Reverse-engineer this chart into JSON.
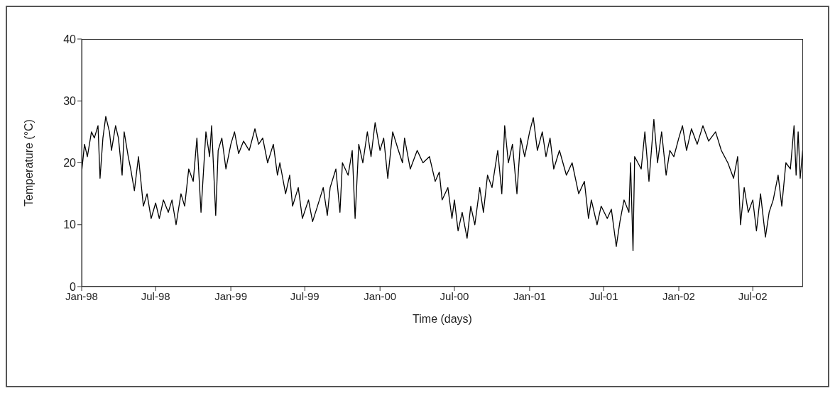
{
  "chart_data": {
    "type": "line",
    "xlabel": "Time (days)",
    "ylabel": "Temperature (°C)",
    "marker": "none",
    "xlim": [
      "1998-01-01",
      "2002-11-01"
    ],
    "xticks": [
      {
        "value": "1998-01-01",
        "label": "Jan-98"
      },
      {
        "value": "1998-07-01",
        "label": "Jul-98"
      },
      {
        "value": "1999-01-01",
        "label": "Jan-99"
      },
      {
        "value": "1999-07-01",
        "label": "Jul-99"
      },
      {
        "value": "2000-01-01",
        "label": "Jan-00"
      },
      {
        "value": "2000-07-01",
        "label": "Jul-00"
      },
      {
        "value": "2001-01-01",
        "label": "Jan-01"
      },
      {
        "value": "2001-07-01",
        "label": "Jul-01"
      },
      {
        "value": "2002-01-01",
        "label": "Jan-02"
      },
      {
        "value": "2002-07-01",
        "label": "Jul-02"
      }
    ],
    "ylim": [
      0,
      40
    ],
    "yticks": [
      0,
      10,
      20,
      30,
      40
    ],
    "x": [
      "1998-01-01",
      "1998-01-08",
      "1998-01-15",
      "1998-01-25",
      "1998-02-01",
      "1998-02-10",
      "1998-02-15",
      "1998-02-22",
      "1998-03-01",
      "1998-03-10",
      "1998-03-15",
      "1998-03-25",
      "1998-04-01",
      "1998-04-10",
      "1998-04-15",
      "1998-04-25",
      "1998-05-01",
      "1998-05-10",
      "1998-05-20",
      "1998-06-01",
      "1998-06-10",
      "1998-06-20",
      "1998-07-01",
      "1998-07-10",
      "1998-07-20",
      "1998-08-01",
      "1998-08-10",
      "1998-08-20",
      "1998-09-01",
      "1998-09-10",
      "1998-09-20",
      "1998-10-01",
      "1998-10-10",
      "1998-10-20",
      "1998-11-01",
      "1998-11-10",
      "1998-11-15",
      "1998-11-25",
      "1998-12-01",
      "1998-12-10",
      "1998-12-20",
      "1999-01-01",
      "1999-01-10",
      "1999-01-20",
      "1999-02-01",
      "1999-02-15",
      "1999-03-01",
      "1999-03-10",
      "1999-03-20",
      "1999-04-01",
      "1999-04-15",
      "1999-04-25",
      "1999-05-01",
      "1999-05-15",
      "1999-05-25",
      "1999-06-01",
      "1999-06-15",
      "1999-06-25",
      "1999-07-10",
      "1999-07-20",
      "1999-08-01",
      "1999-08-15",
      "1999-08-25",
      "1999-09-01",
      "1999-09-15",
      "1999-09-25",
      "1999-10-01",
      "1999-10-15",
      "1999-10-25",
      "1999-11-01",
      "1999-11-10",
      "1999-11-20",
      "1999-12-01",
      "1999-12-10",
      "1999-12-20",
      "2000-01-01",
      "2000-01-10",
      "2000-01-20",
      "2000-02-01",
      "2000-02-15",
      "2000-02-25",
      "2000-03-01",
      "2000-03-15",
      "2000-04-01",
      "2000-04-15",
      "2000-05-01",
      "2000-05-15",
      "2000-05-25",
      "2000-06-01",
      "2000-06-15",
      "2000-06-25",
      "2000-07-01",
      "2000-07-10",
      "2000-07-20",
      "2000-08-01",
      "2000-08-10",
      "2000-08-20",
      "2000-09-01",
      "2000-09-10",
      "2000-09-20",
      "2000-10-01",
      "2000-10-15",
      "2000-10-25",
      "2000-11-01",
      "2000-11-10",
      "2000-11-20",
      "2000-12-01",
      "2000-12-10",
      "2000-12-20",
      "2001-01-01",
      "2001-01-10",
      "2001-01-20",
      "2001-02-01",
      "2001-02-10",
      "2001-02-20",
      "2001-03-01",
      "2001-03-15",
      "2001-04-01",
      "2001-04-15",
      "2001-05-01",
      "2001-05-15",
      "2001-05-25",
      "2001-06-01",
      "2001-06-15",
      "2001-06-25",
      "2001-07-10",
      "2001-07-20",
      "2001-08-01",
      "2001-08-10",
      "2001-08-20",
      "2001-09-01",
      "2001-09-05",
      "2001-09-11",
      "2001-09-15",
      "2001-10-01",
      "2001-10-10",
      "2001-10-20",
      "2001-11-01",
      "2001-11-10",
      "2001-11-20",
      "2001-12-01",
      "2001-12-10",
      "2001-12-20",
      "2002-01-01",
      "2002-01-10",
      "2002-01-20",
      "2002-02-01",
      "2002-02-15",
      "2002-03-01",
      "2002-03-15",
      "2002-04-01",
      "2002-04-15",
      "2002-05-01",
      "2002-05-15",
      "2002-05-25",
      "2002-06-01",
      "2002-06-10",
      "2002-06-20",
      "2002-07-01",
      "2002-07-10",
      "2002-07-20",
      "2002-08-01",
      "2002-08-10",
      "2002-08-20",
      "2002-09-01",
      "2002-09-10",
      "2002-09-20",
      "2002-10-01",
      "2002-10-10",
      "2002-10-15",
      "2002-10-20",
      "2002-10-25",
      "2002-10-31"
    ],
    "series": [
      {
        "color": "#000000",
        "values": [
          18.5,
          23,
          21,
          25,
          24,
          26,
          17.5,
          24,
          27.5,
          25,
          22,
          26,
          24,
          18,
          25,
          21,
          19,
          15.5,
          21,
          13,
          15,
          11,
          13.5,
          11,
          14,
          12,
          14,
          10,
          15,
          13,
          19,
          17,
          24,
          12,
          25,
          21,
          26,
          11.5,
          22,
          24,
          19,
          23,
          25,
          21.5,
          23.5,
          22,
          25.5,
          23,
          24,
          20,
          23,
          18,
          20,
          15,
          18,
          13,
          16,
          11,
          14,
          10.5,
          13,
          16,
          11.5,
          16,
          19,
          12,
          20,
          18,
          22,
          11,
          23,
          20,
          25,
          21,
          26.5,
          22,
          24,
          17.5,
          25,
          22,
          20,
          24,
          19,
          22,
          20,
          21,
          17,
          18.5,
          14,
          16,
          11,
          14,
          9,
          12,
          7.8,
          13,
          10,
          16,
          12,
          18,
          16,
          22,
          15,
          26,
          20,
          23,
          15,
          24,
          21,
          25,
          27.3,
          22,
          25,
          21,
          24,
          19,
          22,
          18,
          20,
          15,
          17,
          11,
          14,
          10,
          13,
          11,
          12.5,
          6.5,
          10.5,
          14,
          12,
          20,
          5.8,
          21,
          19,
          25,
          17,
          27,
          20,
          25,
          18,
          22,
          21,
          24,
          26,
          22,
          25.5,
          23,
          26,
          23.5,
          25,
          22,
          20,
          17.5,
          21,
          10,
          16,
          12,
          14,
          9,
          15,
          8,
          12,
          14,
          18,
          13,
          20,
          19,
          26,
          18,
          25,
          17.5,
          22
        ]
      }
    ]
  }
}
